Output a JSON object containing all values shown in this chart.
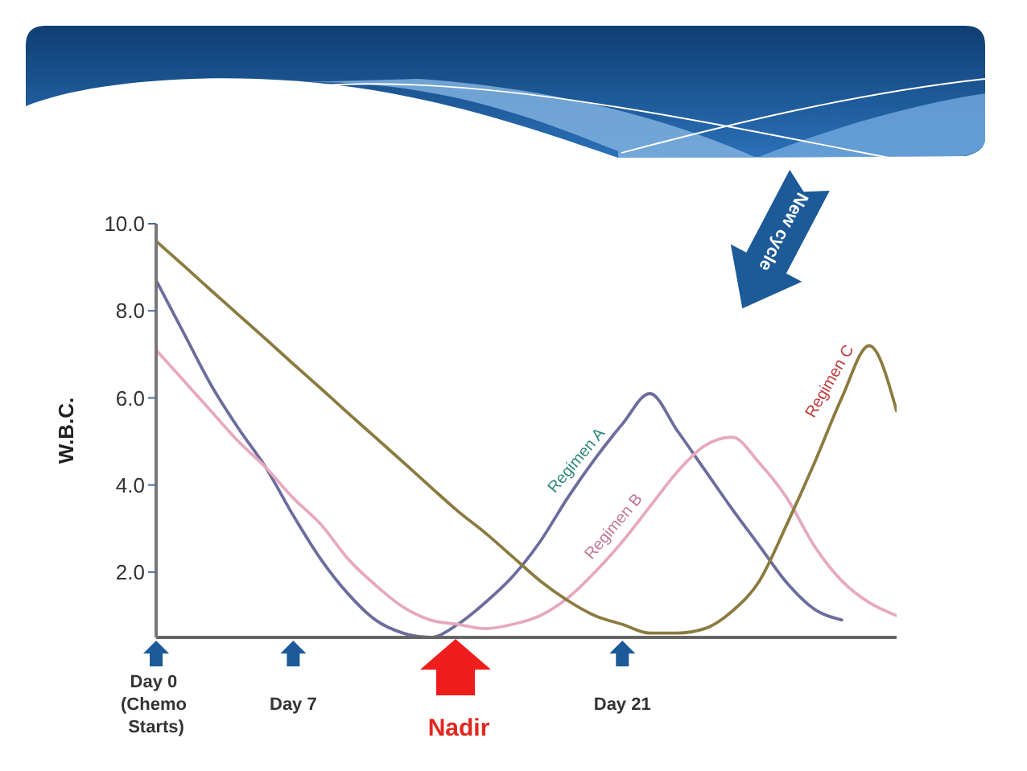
{
  "chart_data": {
    "type": "line",
    "ylabel": "W.B.C.",
    "categories": [
      "Day 0 (Chemo Starts)",
      null,
      null,
      null,
      null,
      "Day 7",
      null,
      null,
      null,
      null,
      null,
      null,
      null,
      null,
      null,
      null,
      null,
      "Day 21",
      null,
      null,
      null,
      null,
      null,
      null,
      null,
      null,
      null,
      null
    ],
    "ylim": [
      0.5,
      10
    ],
    "yticks": [
      {
        "value": 2,
        "label": "2.0"
      },
      {
        "value": 4,
        "label": "4.0"
      },
      {
        "value": 6,
        "label": "6.0"
      },
      {
        "value": 8,
        "label": "8.0"
      },
      {
        "value": 10,
        "label": "10.0"
      }
    ],
    "annotations": [
      "Nadir",
      "New cycle"
    ],
    "marker": "none",
    "line_style": "solid",
    "series": [
      {
        "name": "Regimen A",
        "color": "#6b6d9c",
        "values": [
          8.7,
          7.5,
          6.3,
          5.3,
          4.4,
          3.3,
          2.3,
          1.5,
          0.9,
          0.6,
          0.5,
          0.8,
          1.3,
          1.9,
          2.7,
          3.7,
          4.6,
          5.4,
          6.1,
          5.25,
          4.35,
          3.45,
          2.6,
          1.75,
          1.15,
          0.9,
          null,
          null
        ]
      },
      {
        "name": "Regimen B",
        "color": "#e6a9bf",
        "values": [
          7.1,
          6.4,
          5.7,
          5.0,
          4.4,
          3.7,
          3.1,
          2.3,
          1.7,
          1.2,
          0.9,
          0.8,
          0.7,
          0.8,
          1.0,
          1.4,
          2.0,
          2.7,
          3.5,
          4.3,
          4.9,
          5.1,
          4.5,
          3.7,
          2.6,
          1.8,
          1.3,
          1.0
        ]
      },
      {
        "name": "Regimen C",
        "color": "#8b7b3f",
        "values": [
          9.6,
          9.04,
          8.47,
          7.91,
          7.35,
          6.78,
          6.22,
          5.65,
          5.09,
          4.53,
          3.96,
          3.4,
          2.9,
          2.35,
          1.8,
          1.35,
          1.0,
          0.8,
          0.6,
          0.6,
          0.7,
          1.1,
          1.8,
          3.1,
          4.5,
          6.0,
          7.2,
          5.7
        ]
      }
    ]
  }
}
